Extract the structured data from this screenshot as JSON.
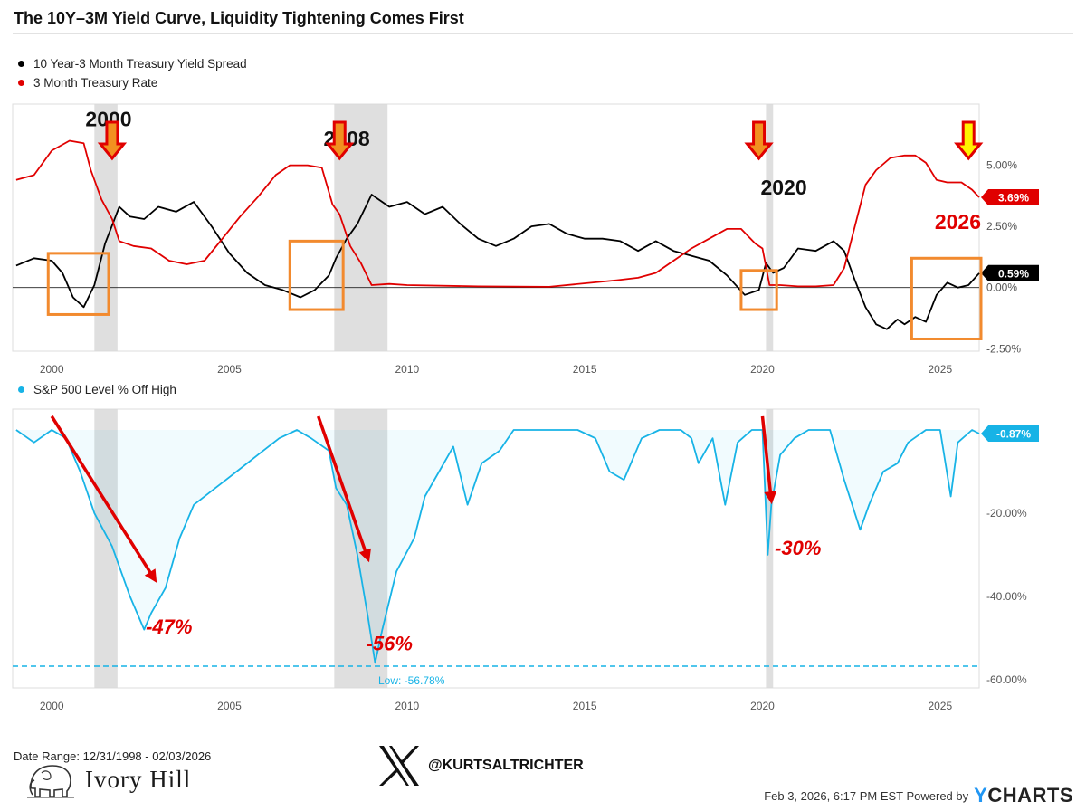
{
  "title": "The 10Y–3M Yield Curve, Liquidity Tightening Comes First",
  "legend_top": [
    {
      "label": "10 Year-3 Month Treasury Yield Spread",
      "color": "#000000"
    },
    {
      "label": "3 Month Treasury Rate",
      "color": "#e00000"
    }
  ],
  "legend_bottom": [
    {
      "label": "S&P 500 Level % Off High",
      "color": "#17b3e6"
    }
  ],
  "chart_data": [
    {
      "type": "line",
      "x_unit": "year",
      "xlim": [
        1998.9,
        2026.1
      ],
      "x_ticks": [
        "2000",
        "2005",
        "2010",
        "2015",
        "2020",
        "2025"
      ],
      "y_ticks": [
        "5.00%",
        "2.50%",
        "0.00%",
        "-2.50%"
      ],
      "ylim": [
        -2.6,
        7.5
      ],
      "grid": false,
      "legend_position": "top-left",
      "series": [
        {
          "name": "10 Year-3 Month Treasury Yield Spread",
          "color": "#000000",
          "last_value_label": "0.59%",
          "x": [
            1999.0,
            1999.5,
            2000.0,
            2000.3,
            2000.6,
            2000.9,
            2001.2,
            2001.5,
            2001.9,
            2002.2,
            2002.6,
            2003.0,
            2003.5,
            2004.0,
            2004.5,
            2005.0,
            2005.5,
            2006.0,
            2006.5,
            2007.0,
            2007.4,
            2007.8,
            2008.0,
            2008.3,
            2008.6,
            2009.0,
            2009.5,
            2010.0,
            2010.5,
            2011.0,
            2011.5,
            2012.0,
            2012.5,
            2013.0,
            2013.5,
            2014.0,
            2014.5,
            2015.0,
            2015.5,
            2016.0,
            2016.5,
            2017.0,
            2017.5,
            2018.0,
            2018.5,
            2019.0,
            2019.5,
            2019.9,
            2020.1,
            2020.3,
            2020.6,
            2021.0,
            2021.5,
            2022.0,
            2022.3,
            2022.6,
            2022.9,
            2023.2,
            2023.5,
            2023.8,
            2024.0,
            2024.3,
            2024.6,
            2024.9,
            2025.2,
            2025.5,
            2025.8,
            2026.1
          ],
          "y": [
            0.9,
            1.2,
            1.1,
            0.6,
            -0.4,
            -0.8,
            0.1,
            1.8,
            3.3,
            2.9,
            2.8,
            3.3,
            3.1,
            3.5,
            2.5,
            1.4,
            0.6,
            0.1,
            -0.1,
            -0.4,
            -0.1,
            0.5,
            1.2,
            2.0,
            2.6,
            3.8,
            3.3,
            3.5,
            3.0,
            3.3,
            2.6,
            2.0,
            1.7,
            2.0,
            2.5,
            2.6,
            2.2,
            2.0,
            2.0,
            1.9,
            1.5,
            1.9,
            1.5,
            1.3,
            1.1,
            0.5,
            -0.3,
            -0.1,
            1.0,
            0.6,
            0.8,
            1.6,
            1.5,
            1.9,
            1.5,
            0.3,
            -0.8,
            -1.5,
            -1.7,
            -1.3,
            -1.5,
            -1.2,
            -1.4,
            -0.3,
            0.2,
            0.0,
            0.1,
            0.59
          ]
        },
        {
          "name": "3 Month Treasury Rate",
          "color": "#e00000",
          "last_value_label": "3.69%",
          "x": [
            1999.0,
            1999.5,
            2000.0,
            2000.5,
            2000.9,
            2001.1,
            2001.4,
            2001.7,
            2001.9,
            2002.3,
            2002.8,
            2003.3,
            2003.8,
            2004.3,
            2004.8,
            2005.3,
            2005.8,
            2006.3,
            2006.7,
            2007.2,
            2007.6,
            2007.9,
            2008.1,
            2008.4,
            2008.7,
            2009.0,
            2009.5,
            2010.0,
            2012.0,
            2014.0,
            2015.9,
            2016.5,
            2017.0,
            2017.5,
            2018.0,
            2018.5,
            2019.0,
            2019.4,
            2019.8,
            2020.0,
            2020.2,
            2020.5,
            2021.0,
            2021.5,
            2022.0,
            2022.3,
            2022.6,
            2022.9,
            2023.2,
            2023.6,
            2024.0,
            2024.3,
            2024.6,
            2024.9,
            2025.2,
            2025.6,
            2025.9,
            2026.1
          ],
          "y": [
            4.4,
            4.6,
            5.6,
            6.0,
            5.9,
            4.8,
            3.6,
            2.8,
            1.9,
            1.7,
            1.6,
            1.1,
            0.95,
            1.1,
            2.0,
            2.9,
            3.7,
            4.6,
            5.0,
            5.0,
            4.9,
            3.4,
            3.0,
            1.7,
            1.0,
            0.1,
            0.15,
            0.1,
            0.05,
            0.03,
            0.3,
            0.4,
            0.6,
            1.1,
            1.6,
            2.0,
            2.4,
            2.4,
            1.8,
            1.6,
            0.1,
            0.1,
            0.05,
            0.05,
            0.1,
            0.8,
            2.5,
            4.2,
            4.8,
            5.3,
            5.4,
            5.4,
            5.1,
            4.4,
            4.3,
            4.3,
            4.0,
            3.69
          ]
        }
      ],
      "baseline": 0,
      "shaded_recessions": [
        [
          2001.2,
          2001.85
        ],
        [
          2007.95,
          2009.45
        ],
        [
          2020.1,
          2020.3
        ]
      ],
      "annotations": [
        {
          "text": "2000",
          "x": 2001.6,
          "y": 6.6,
          "color": "#111111"
        },
        {
          "text": "2008",
          "x": 2008.3,
          "y": 5.8,
          "color": "#111111"
        },
        {
          "text": "2020",
          "x": 2020.6,
          "y": 3.8,
          "color": "#111111"
        },
        {
          "text": "2026",
          "x": 2025.5,
          "y": 2.4,
          "color": "#e00000"
        }
      ],
      "arrows_years": [
        2001.7,
        2008.1,
        2019.9,
        2025.8
      ],
      "highlight_boxes": [
        {
          "x": [
            1999.9,
            2001.6
          ],
          "y": [
            -1.1,
            1.4
          ]
        },
        {
          "x": [
            2006.7,
            2008.2
          ],
          "y": [
            -0.9,
            1.9
          ]
        },
        {
          "x": [
            2019.4,
            2020.4
          ],
          "y": [
            -0.9,
            0.7
          ]
        },
        {
          "x": [
            2024.2,
            2027.3
          ],
          "y": [
            -2.1,
            1.2
          ]
        }
      ]
    },
    {
      "type": "area",
      "x_unit": "year",
      "xlim": [
        1998.9,
        2026.1
      ],
      "x_ticks": [
        "2000",
        "2005",
        "2010",
        "2015",
        "2020",
        "2025"
      ],
      "y_ticks": [
        "0.00%",
        "-20.00%",
        "-40.00%",
        "-60.00%"
      ],
      "ylim": [
        -62,
        5
      ],
      "grid": false,
      "legend_position": "top-left",
      "series": [
        {
          "name": "S&P 500 Level % Off High",
          "color": "#17b3e6",
          "last_value_label": "-0.87%",
          "x": [
            1999.0,
            1999.5,
            2000.0,
            2000.4,
            2000.8,
            2001.2,
            2001.7,
            2002.2,
            2002.6,
            2002.8,
            2003.2,
            2003.6,
            2004.0,
            2004.6,
            2005.2,
            2005.8,
            2006.4,
            2006.9,
            2007.3,
            2007.8,
            2008.0,
            2008.3,
            2008.6,
            2008.9,
            2009.1,
            2009.3,
            2009.7,
            2010.2,
            2010.5,
            2010.9,
            2011.3,
            2011.7,
            2012.1,
            2012.6,
            2013.0,
            2013.4,
            2013.8,
            2014.3,
            2014.8,
            2015.3,
            2015.7,
            2016.1,
            2016.6,
            2017.1,
            2017.7,
            2018.0,
            2018.2,
            2018.6,
            2018.95,
            2019.3,
            2019.7,
            2020.0,
            2020.15,
            2020.25,
            2020.5,
            2020.9,
            2021.3,
            2021.9,
            2022.3,
            2022.75,
            2023.0,
            2023.4,
            2023.8,
            2024.1,
            2024.6,
            2025.0,
            2025.3,
            2025.5,
            2025.9,
            2026.1
          ],
          "y": [
            0,
            -3,
            0,
            -2,
            -10,
            -20,
            -28,
            -40,
            -48,
            -44,
            -38,
            -26,
            -18,
            -14,
            -10,
            -6,
            -2,
            0,
            -2,
            -5,
            -14,
            -18,
            -30,
            -45,
            -56,
            -48,
            -34,
            -26,
            -16,
            -10,
            -4,
            -18,
            -8,
            -5,
            0,
            0,
            0,
            0,
            0,
            -2,
            -10,
            -12,
            -2,
            0,
            0,
            -2,
            -8,
            -2,
            -18,
            -3,
            0,
            0,
            -30,
            -18,
            -6,
            -2,
            0,
            0,
            -12,
            -24,
            -18,
            -10,
            -8,
            -3,
            0,
            0,
            -16,
            -3,
            0,
            -0.87
          ]
        }
      ],
      "reference_line": {
        "value": -56.78,
        "label": "Low: -56.78%",
        "color": "#17b3e6"
      },
      "shaded_recessions": [
        [
          2001.2,
          2001.85
        ],
        [
          2007.95,
          2009.45
        ],
        [
          2020.1,
          2020.3
        ]
      ],
      "annotations": [
        {
          "text": "-47%",
          "x": 2003.3,
          "y": -49,
          "color": "#e00000"
        },
        {
          "text": "-56%",
          "x": 2009.5,
          "y": -53,
          "color": "#e00000"
        },
        {
          "text": "-30%",
          "x": 2021.0,
          "y": -30,
          "color": "#e00000"
        }
      ],
      "arrows": [
        {
          "x": [
            2000.0,
            2002.9
          ],
          "y": [
            0,
            -36
          ]
        },
        {
          "x": [
            2007.5,
            2008.9
          ],
          "y": [
            0,
            -31
          ]
        },
        {
          "x": [
            2020.0,
            2020.25
          ],
          "y": [
            0,
            -17
          ]
        }
      ]
    }
  ],
  "footer": {
    "date_range": "Date Range: 12/31/1998 - 02/03/2026",
    "brand": "Ivory Hill",
    "handle": "@KURTSALTRICHTER",
    "powered": "Feb 3, 2026, 6:17 PM EST Powered by",
    "ycharts": "CHARTS",
    "ycharts_y": "Y"
  },
  "icons": {
    "brand_logo": "elephant-icon",
    "handle_logo": "x-logo-icon"
  }
}
